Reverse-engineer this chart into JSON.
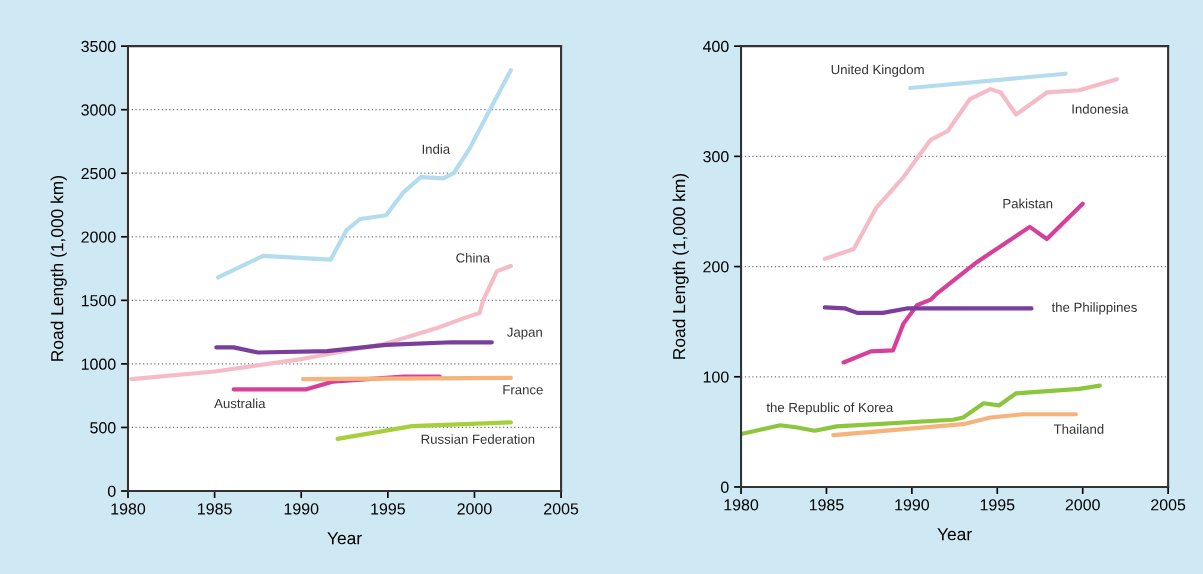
{
  "chart_data": [
    {
      "type": "line",
      "xlabel": "Year",
      "ylabel": "Road Length (1,000 km)",
      "xlim": [
        1980,
        2005
      ],
      "xticks": [
        1980,
        1985,
        1990,
        1995,
        2000,
        2005
      ],
      "ylim": [
        0,
        3500
      ],
      "yticks": [
        0,
        500,
        1000,
        1500,
        2000,
        2500,
        3000,
        3500
      ],
      "grid": "y",
      "series": [
        {
          "name": "India",
          "color": "#b3dcee",
          "x": [
            1985.2,
            1987.8,
            1991.7,
            1992.6,
            1993.4,
            1994.9,
            1995.9,
            1996.9,
            1998.2,
            1998.8,
            1999.7,
            2000.7,
            2002.1
          ],
          "values": [
            1680,
            1850,
            1820,
            2050,
            2140,
            2170,
            2350,
            2470,
            2460,
            2500,
            2690,
            2950,
            3310
          ]
        },
        {
          "name": "China",
          "color": "#f5bcc8",
          "x": [
            1980.2,
            1985,
            1990.1,
            1994.9,
            1997.8,
            1999.6,
            2000.3,
            2000.5,
            2001.3,
            2002.1
          ],
          "values": [
            880,
            940,
            1040,
            1160,
            1280,
            1370,
            1400,
            1500,
            1730,
            1770
          ]
        },
        {
          "name": "Japan",
          "color": "#7a3f9a",
          "x": [
            1985.1,
            1986.1,
            1987.5,
            1991.5,
            1994.9,
            1998.7,
            2001.0
          ],
          "values": [
            1130,
            1130,
            1090,
            1100,
            1150,
            1170,
            1170
          ]
        },
        {
          "name": "Australia",
          "color": "#d6409a",
          "x": [
            1986.1,
            1990.3,
            1991.8,
            1995.9,
            1998.0
          ],
          "values": [
            800,
            800,
            860,
            900,
            900
          ]
        },
        {
          "name": "France",
          "color": "#f6b47c",
          "x": [
            1990.1,
            2002.1
          ],
          "values": [
            880,
            890
          ]
        },
        {
          "name": "Russian Federation",
          "color": "#a6cf3c",
          "x": [
            1992.1,
            1996.4,
            2002.1
          ],
          "values": [
            410,
            510,
            540
          ]
        }
      ]
    },
    {
      "type": "line",
      "xlabel": "Year",
      "ylabel": "Road Length (1,000 km)",
      "xlim": [
        1980,
        2005
      ],
      "xticks": [
        1980,
        1985,
        1990,
        1995,
        2000,
        2005
      ],
      "ylim": [
        0,
        400
      ],
      "yticks": [
        0,
        100,
        200,
        300,
        400
      ],
      "grid": "y",
      "series": [
        {
          "name": "United Kingdom",
          "color": "#b3dcee",
          "x": [
            1989.9,
            1999.0
          ],
          "values": [
            362,
            375
          ]
        },
        {
          "name": "Indonesia",
          "color": "#f5bcc8",
          "x": [
            1984.9,
            1986.6,
            1987.9,
            1989.5,
            1991.1,
            1992.1,
            1993.4,
            1994.6,
            1995.2,
            1996.1,
            1997.9,
            1999.8,
            2002.0
          ],
          "values": [
            207,
            216,
            253,
            281,
            315,
            323,
            352,
            361,
            358,
            338,
            358,
            360,
            370
          ]
        },
        {
          "name": "Pakistan",
          "color": "#d6409a",
          "x": [
            1986.0,
            1987.6,
            1988.9,
            1989.5,
            1990.3,
            1991.1,
            1991.5,
            1993.8,
            1996.9,
            1997.9,
            2000.0
          ],
          "values": [
            113,
            123,
            124,
            148,
            165,
            170,
            176,
            204,
            236,
            225,
            257
          ]
        },
        {
          "name": "the Philippines",
          "color": "#7a3f9a",
          "x": [
            1984.9,
            1986.1,
            1986.8,
            1988.3,
            1989.7,
            1997.0
          ],
          "values": [
            163,
            162,
            158,
            158,
            162,
            162
          ]
        },
        {
          "name": "the Republic of Korea",
          "color": "#8cc63f",
          "x": [
            1980.0,
            1982.3,
            1983.3,
            1984.3,
            1985.6,
            1992.4,
            1993.0,
            1994.2,
            1995.1,
            1996.1,
            1999.8,
            2001.0
          ],
          "values": [
            48,
            56,
            54,
            51,
            55,
            61,
            63,
            76,
            74,
            85,
            89,
            92
          ]
        },
        {
          "name": "Thailand",
          "color": "#f6b47c",
          "x": [
            1985.4,
            1993.0,
            1994.6,
            1996.5,
            1999.6
          ],
          "values": [
            47,
            57,
            63,
            66,
            66
          ]
        }
      ]
    }
  ]
}
